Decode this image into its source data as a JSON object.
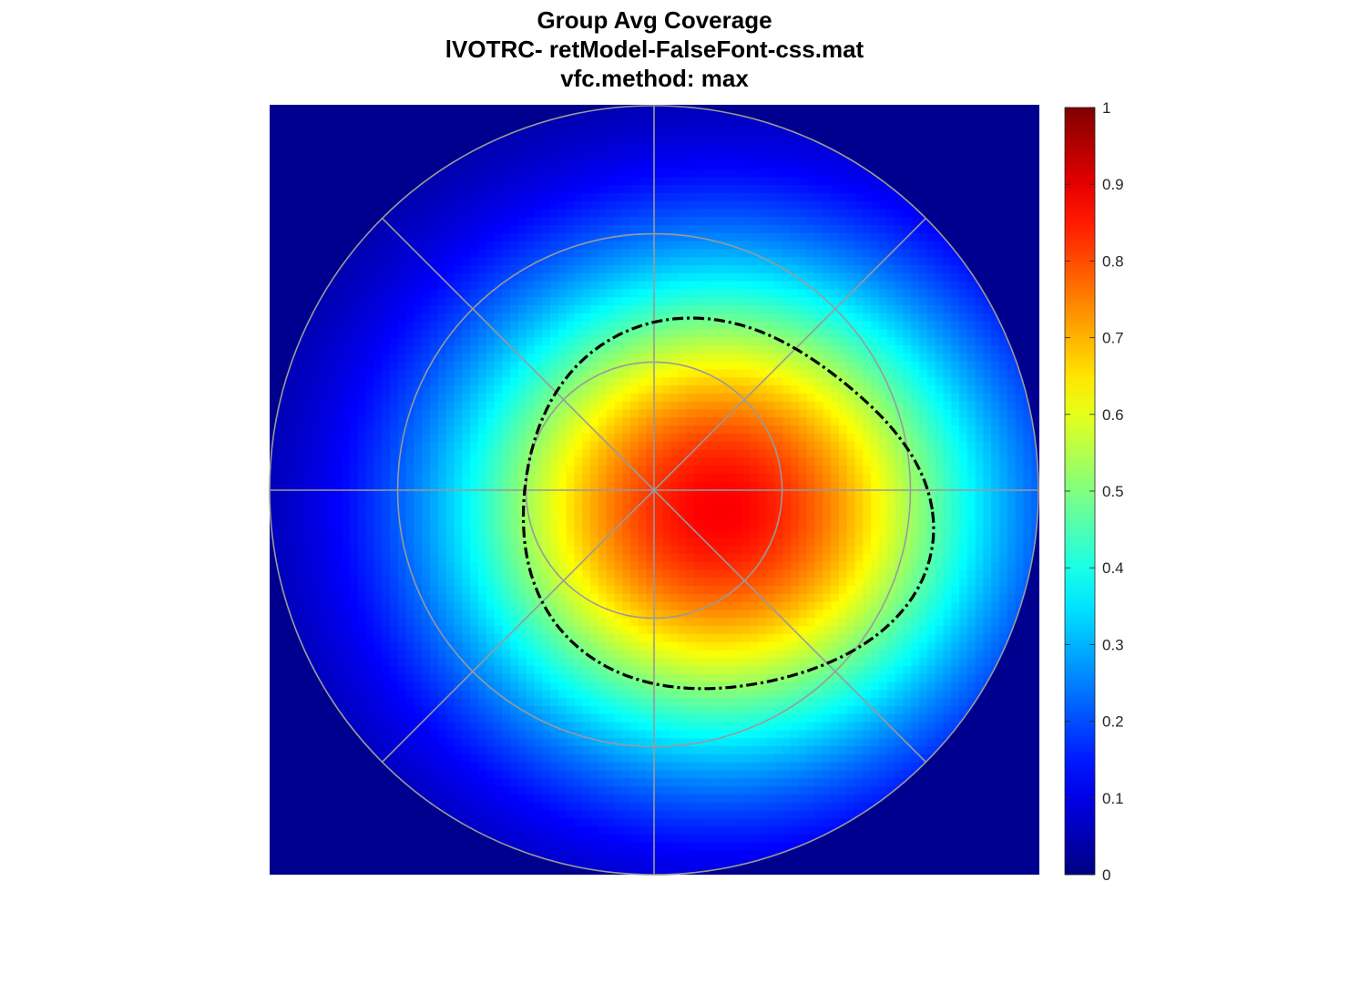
{
  "chart_data": {
    "type": "heatmap",
    "title_lines": [
      "Group Avg Coverage",
      "lVOTRC- retModel-FalseFont-css.mat",
      "vfc.method: max"
    ],
    "colormap": "jet",
    "color_limits": [
      0,
      1
    ],
    "colorbar": {
      "position": "right",
      "ticks": [
        0,
        0.1,
        0.2,
        0.3,
        0.4,
        0.5,
        0.6,
        0.7,
        0.8,
        0.9,
        1
      ],
      "tick_labels": [
        "0",
        "0.1",
        "0.2",
        "0.3",
        "0.4",
        "0.5",
        "0.6",
        "0.7",
        "0.8",
        "0.9",
        "1"
      ]
    },
    "polar_grid": {
      "grid": true,
      "grid_color": "#9a9a9a",
      "ring_fractions": [
        0.333,
        0.667,
        1.0
      ],
      "spoke_angles_deg": [
        0,
        45,
        90,
        135,
        180,
        225,
        270,
        315
      ]
    },
    "coverage_field": {
      "description_units": "field radius fractions",
      "peak_value": 0.88,
      "peak_center": [
        0.17,
        -0.05
      ],
      "spread": [
        0.5,
        0.45
      ],
      "background_value": 0.0
    },
    "contour": {
      "level": 0.5,
      "style": "dash-dot",
      "color": "#000000"
    }
  }
}
